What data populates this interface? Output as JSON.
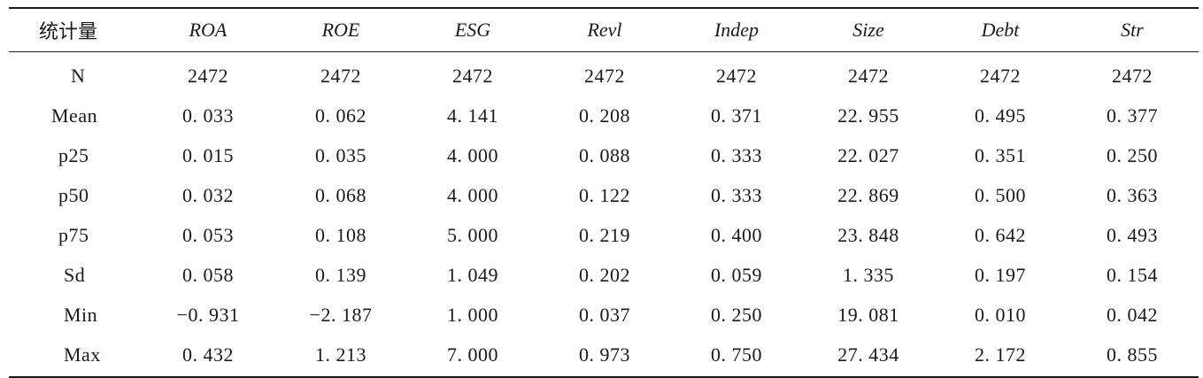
{
  "table": {
    "stat_header": "统计量",
    "columns": [
      "ROA",
      "ROE",
      "ESG",
      "Revl",
      "Indep",
      "Size",
      "Debt",
      "Str"
    ],
    "rows": [
      {
        "label": "N",
        "values": [
          "2472",
          "2472",
          "2472",
          "2472",
          "2472",
          "2472",
          "2472",
          "2472"
        ]
      },
      {
        "label": "Mean",
        "values": [
          "0. 033",
          "0. 062",
          "4. 141",
          "0. 208",
          "0. 371",
          "22. 955",
          "0. 495",
          "0. 377"
        ]
      },
      {
        "label": "p25",
        "values": [
          "0. 015",
          "0. 035",
          "4. 000",
          "0. 088",
          "0. 333",
          "22. 027",
          "0. 351",
          "0. 250"
        ]
      },
      {
        "label": "p50",
        "values": [
          "0. 032",
          "0. 068",
          "4. 000",
          "0. 122",
          "0. 333",
          "22. 869",
          "0. 500",
          "0. 363"
        ]
      },
      {
        "label": "p75",
        "values": [
          "0. 053",
          "0. 108",
          "5. 000",
          "0. 219",
          "0. 400",
          "23. 848",
          "0. 642",
          "0. 493"
        ]
      },
      {
        "label": "Sd",
        "values": [
          "0. 058",
          "0. 139",
          "1. 049",
          "0. 202",
          "0. 059",
          "1. 335",
          "0. 197",
          "0. 154"
        ]
      },
      {
        "label": "Min",
        "values": [
          "−0. 931",
          "−2. 187",
          "1. 000",
          "0. 037",
          "0. 250",
          "19. 081",
          "0. 010",
          "0. 042"
        ]
      },
      {
        "label": "Max",
        "values": [
          "0. 432",
          "1. 213",
          "7. 000",
          "0. 973",
          "0. 750",
          "27. 434",
          "2. 172",
          "0. 855"
        ]
      }
    ]
  }
}
